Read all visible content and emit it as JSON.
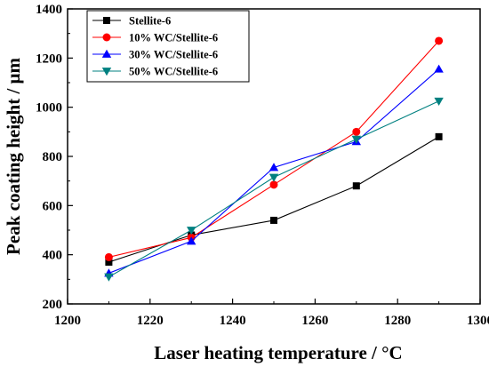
{
  "chart_data": {
    "type": "line",
    "xlabel": "Laser heating temperature / °C",
    "ylabel": "Peak coating height / μm",
    "xlim": [
      1200,
      1300
    ],
    "ylim": [
      200,
      1400
    ],
    "xticks": [
      1200,
      1220,
      1240,
      1260,
      1280,
      1300
    ],
    "yticks": [
      200,
      400,
      600,
      800,
      1000,
      1200,
      1400
    ],
    "x": [
      1210,
      1230,
      1250,
      1270,
      1290
    ],
    "grid": false,
    "legend_position": "top-left",
    "series": [
      {
        "name": "Stellite-6",
        "marker": "square",
        "color": "#000000",
        "values": [
          370,
          480,
          540,
          680,
          880
        ]
      },
      {
        "name": "10% WC/Stellite-6",
        "marker": "circle",
        "color": "#ff0000",
        "values": [
          390,
          470,
          685,
          900,
          1270
        ]
      },
      {
        "name": "30% WC/Stellite-6",
        "marker": "triangle-up",
        "color": "#0000ff",
        "values": [
          325,
          455,
          755,
          860,
          1155
        ]
      },
      {
        "name": "50% WC/Stellite-6",
        "marker": "triangle-down",
        "color": "#008080",
        "values": [
          310,
          500,
          715,
          870,
          1025
        ]
      }
    ]
  }
}
